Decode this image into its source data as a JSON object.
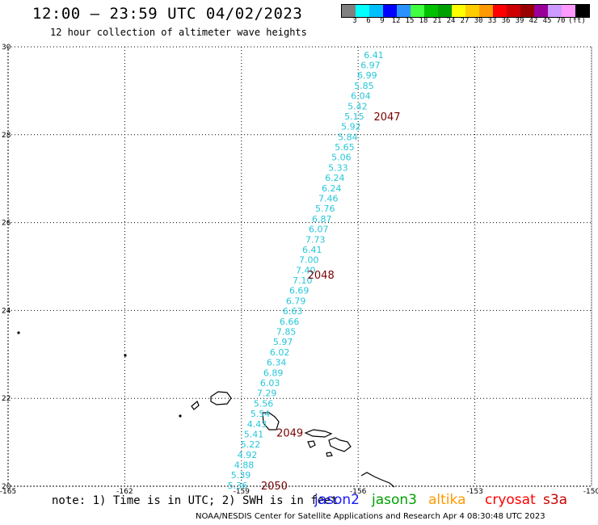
{
  "header": {
    "title": "12:00 – 23:59 UTC 04/02/2023",
    "subtitle": "12 hour collection of altimeter wave heights"
  },
  "colorbar": {
    "colors": [
      "#808080",
      "#00ffff",
      "#00bfff",
      "#0000ff",
      "#2a92ff",
      "#40ff40",
      "#00c000",
      "#00a000",
      "#ffff00",
      "#ffcc00",
      "#ff9900",
      "#ff0000",
      "#cc0000",
      "#990000",
      "#990099",
      "#cc99ff",
      "#ff99ff",
      "#000000"
    ],
    "ticks": [
      "3",
      "6",
      "9",
      "12",
      "15",
      "18",
      "21",
      "24",
      "27",
      "30",
      "33",
      "36",
      "39",
      "42",
      "45",
      "70",
      "(ft)"
    ]
  },
  "axes": {
    "x_ticks": [
      "-165",
      "-162",
      "-159",
      "-156",
      "-153",
      "-150"
    ],
    "y_ticks": [
      "30",
      "28",
      "26",
      "24",
      "22",
      "20"
    ]
  },
  "chart_data": {
    "type": "scatter",
    "xlim": [
      -165,
      -150
    ],
    "ylim": [
      20,
      30
    ],
    "grid": true,
    "track_values": [
      "6.41",
      "6.97",
      "6.99",
      "5.85",
      "6.04",
      "5.42",
      "5.15",
      "5.92",
      "5.84",
      "5.65",
      "5.06",
      "5.33",
      "6.24",
      "6.24",
      "7.46",
      "5.76",
      "6.87",
      "6.07",
      "7.73",
      "6.41",
      "7.00",
      "7.40",
      "7.10",
      "6.69",
      "6.79",
      "6.63",
      "6.66",
      "7.85",
      "5.97",
      "6.02",
      "6.34",
      "6.89",
      "6.03",
      "7.29",
      "5.56",
      "5.54",
      "4.43",
      "5.41",
      "5.22",
      "4.92",
      "4.88",
      "5.39",
      "5.36"
    ],
    "pass_labels": [
      {
        "label": "2047",
        "lon": -155.6,
        "lat": 28.4
      },
      {
        "label": "2048",
        "lon": -157.3,
        "lat": 24.8
      },
      {
        "label": "2049",
        "lon": -158.1,
        "lat": 21.2
      },
      {
        "label": "2050",
        "lon": -158.5,
        "lat": 20.0
      }
    ]
  },
  "note": "note: 1) Time is in UTC; 2) SWH is in feet",
  "satellites": [
    {
      "name": "jason2",
      "color": "#1a1aff"
    },
    {
      "name": "jason3",
      "color": "#00a000"
    },
    {
      "name": "altika",
      "color": "#ff9900"
    },
    {
      "name": "cryosat",
      "color": "#ff0000"
    },
    {
      "name": "s3a",
      "color": "#cc0000"
    }
  ],
  "footer": "NOAA/NESDIS Center for Satellite Applications and Research   Apr  4 08:30:48 UTC 2023"
}
